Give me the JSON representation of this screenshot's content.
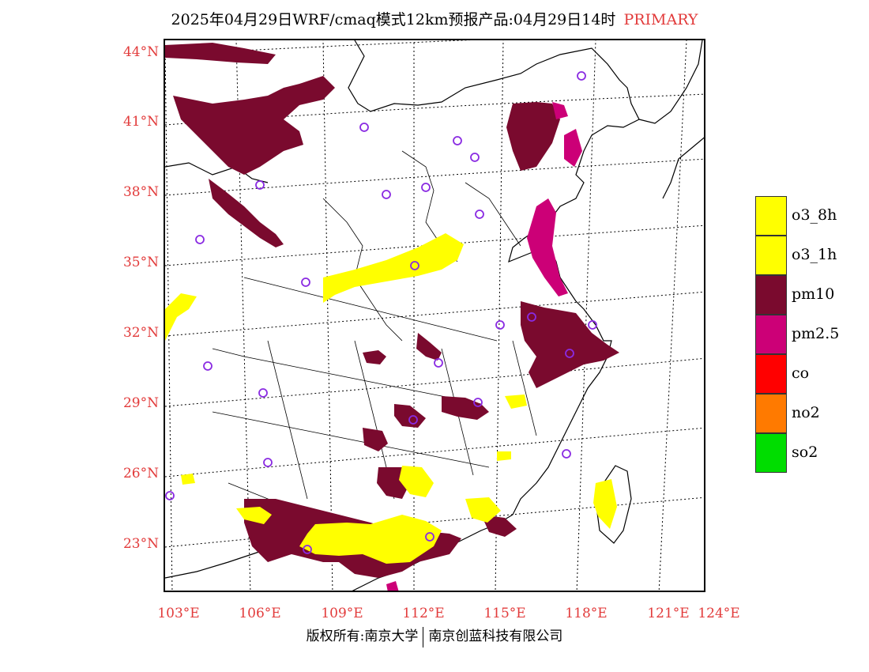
{
  "title": {
    "main": "2025年04月29日WRF/cmaq模式12km预报产品:04月29日14时",
    "tag": "PRIMARY"
  },
  "axes": {
    "lat_labels": [
      "44°N",
      "41°N",
      "38°N",
      "35°N",
      "32°N",
      "29°N",
      "26°N",
      "23°N"
    ],
    "lon_labels": [
      "103°E",
      "106°E",
      "109°E",
      "112°E",
      "115°E",
      "118°E",
      "121°E",
      "124°E"
    ]
  },
  "legend": [
    {
      "label": "o3_8h",
      "color": "#ffff00"
    },
    {
      "label": "o3_1h",
      "color": "#ffff00"
    },
    {
      "label": "pm10",
      "color": "#7a0a2e"
    },
    {
      "label": "pm2.5",
      "color": "#cc0077"
    },
    {
      "label": "co",
      "color": "#ff0000"
    },
    {
      "label": "no2",
      "color": "#ff7a00"
    },
    {
      "label": "so2",
      "color": "#00dd00"
    }
  ],
  "footer": {
    "left": "版权所有:南京大学",
    "right": "南京创蓝科技有限公司"
  },
  "colors": {
    "accent_red": "#e23b3b",
    "pm10": "#7a0a2e",
    "pm25": "#cc0077",
    "o3": "#ffff00",
    "station": "#8a2be2"
  }
}
